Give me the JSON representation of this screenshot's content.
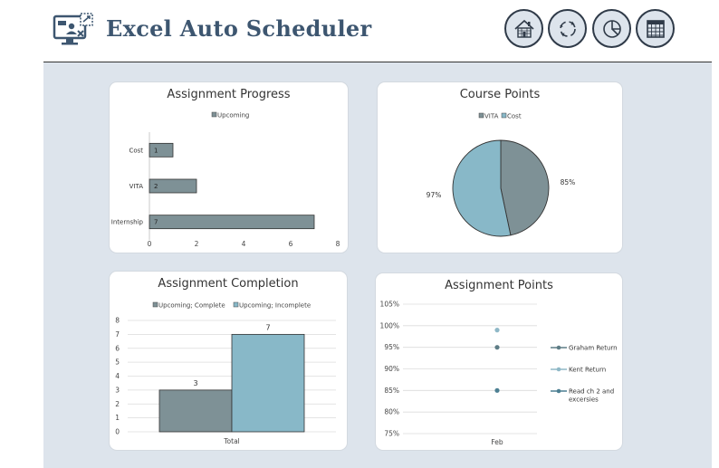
{
  "app": {
    "title": "Excel Auto Scheduler"
  },
  "toolbar": [
    {
      "name": "home-icon"
    },
    {
      "name": "refresh-cycle-icon"
    },
    {
      "name": "pie-chart-icon"
    },
    {
      "name": "calendar-icon"
    }
  ],
  "colors": {
    "accent": "#3d5670",
    "bar_gray": "#7e9196",
    "bar_blue": "#88b8c8",
    "point_blue": "#8fb8c7",
    "point_dark": "#5e7d86",
    "point_teal": "#4c7f92",
    "background": "#dde4ec"
  },
  "chart_data": [
    {
      "type": "bar",
      "orientation": "horizontal",
      "title": "Assignment Progress",
      "legend": {
        "placement": "top",
        "entries": [
          "Upcoming"
        ]
      },
      "categories": [
        "Internship",
        "VITA",
        "Cost"
      ],
      "series": [
        {
          "name": "Upcoming",
          "values": [
            7,
            2,
            1
          ]
        }
      ],
      "data_labels": [
        "7",
        "2",
        "1"
      ],
      "xlim": [
        0,
        8
      ],
      "x_ticks": [
        "0",
        "2",
        "4",
        "6",
        "8"
      ],
      "grid": false
    },
    {
      "type": "pie",
      "title": "Course Points",
      "legend": {
        "placement": "top",
        "entries": [
          "VITA",
          "Cost"
        ]
      },
      "slices": [
        {
          "name": "VITA",
          "value": 85,
          "label": "85%"
        },
        {
          "name": "Cost",
          "value": 97,
          "label": "97%"
        }
      ]
    },
    {
      "type": "bar",
      "title": "Assignment Completion",
      "legend": {
        "placement": "top",
        "entries": [
          "Upcoming; Complete",
          "Upcoming; Incomplete"
        ]
      },
      "categories": [
        "Total"
      ],
      "series": [
        {
          "name": "Upcoming; Complete",
          "values": [
            3
          ]
        },
        {
          "name": "Upcoming; Incomplete",
          "values": [
            7
          ]
        }
      ],
      "data_labels": [
        "3",
        "7"
      ],
      "ylim": [
        0,
        8
      ],
      "y_ticks": [
        "0",
        "1",
        "2",
        "3",
        "4",
        "5",
        "6",
        "7",
        "8"
      ],
      "grid": true
    },
    {
      "type": "line",
      "title": "Assignment Points",
      "legend": {
        "placement": "right",
        "entries": [
          "Graham Return",
          "Kent Return",
          "Read ch 2 and excersies"
        ]
      },
      "categories": [
        "Feb"
      ],
      "series": [
        {
          "name": "Graham Return",
          "values": [
            0.95
          ]
        },
        {
          "name": "Kent Return",
          "values": [
            0.99
          ]
        },
        {
          "name": "Read ch 2 and excersies",
          "values": [
            0.85
          ]
        }
      ],
      "ylim": [
        0.75,
        1.05
      ],
      "y_ticks": [
        "75%",
        "80%",
        "85%",
        "90%",
        "95%",
        "100%",
        "105%"
      ],
      "grid": true
    }
  ]
}
